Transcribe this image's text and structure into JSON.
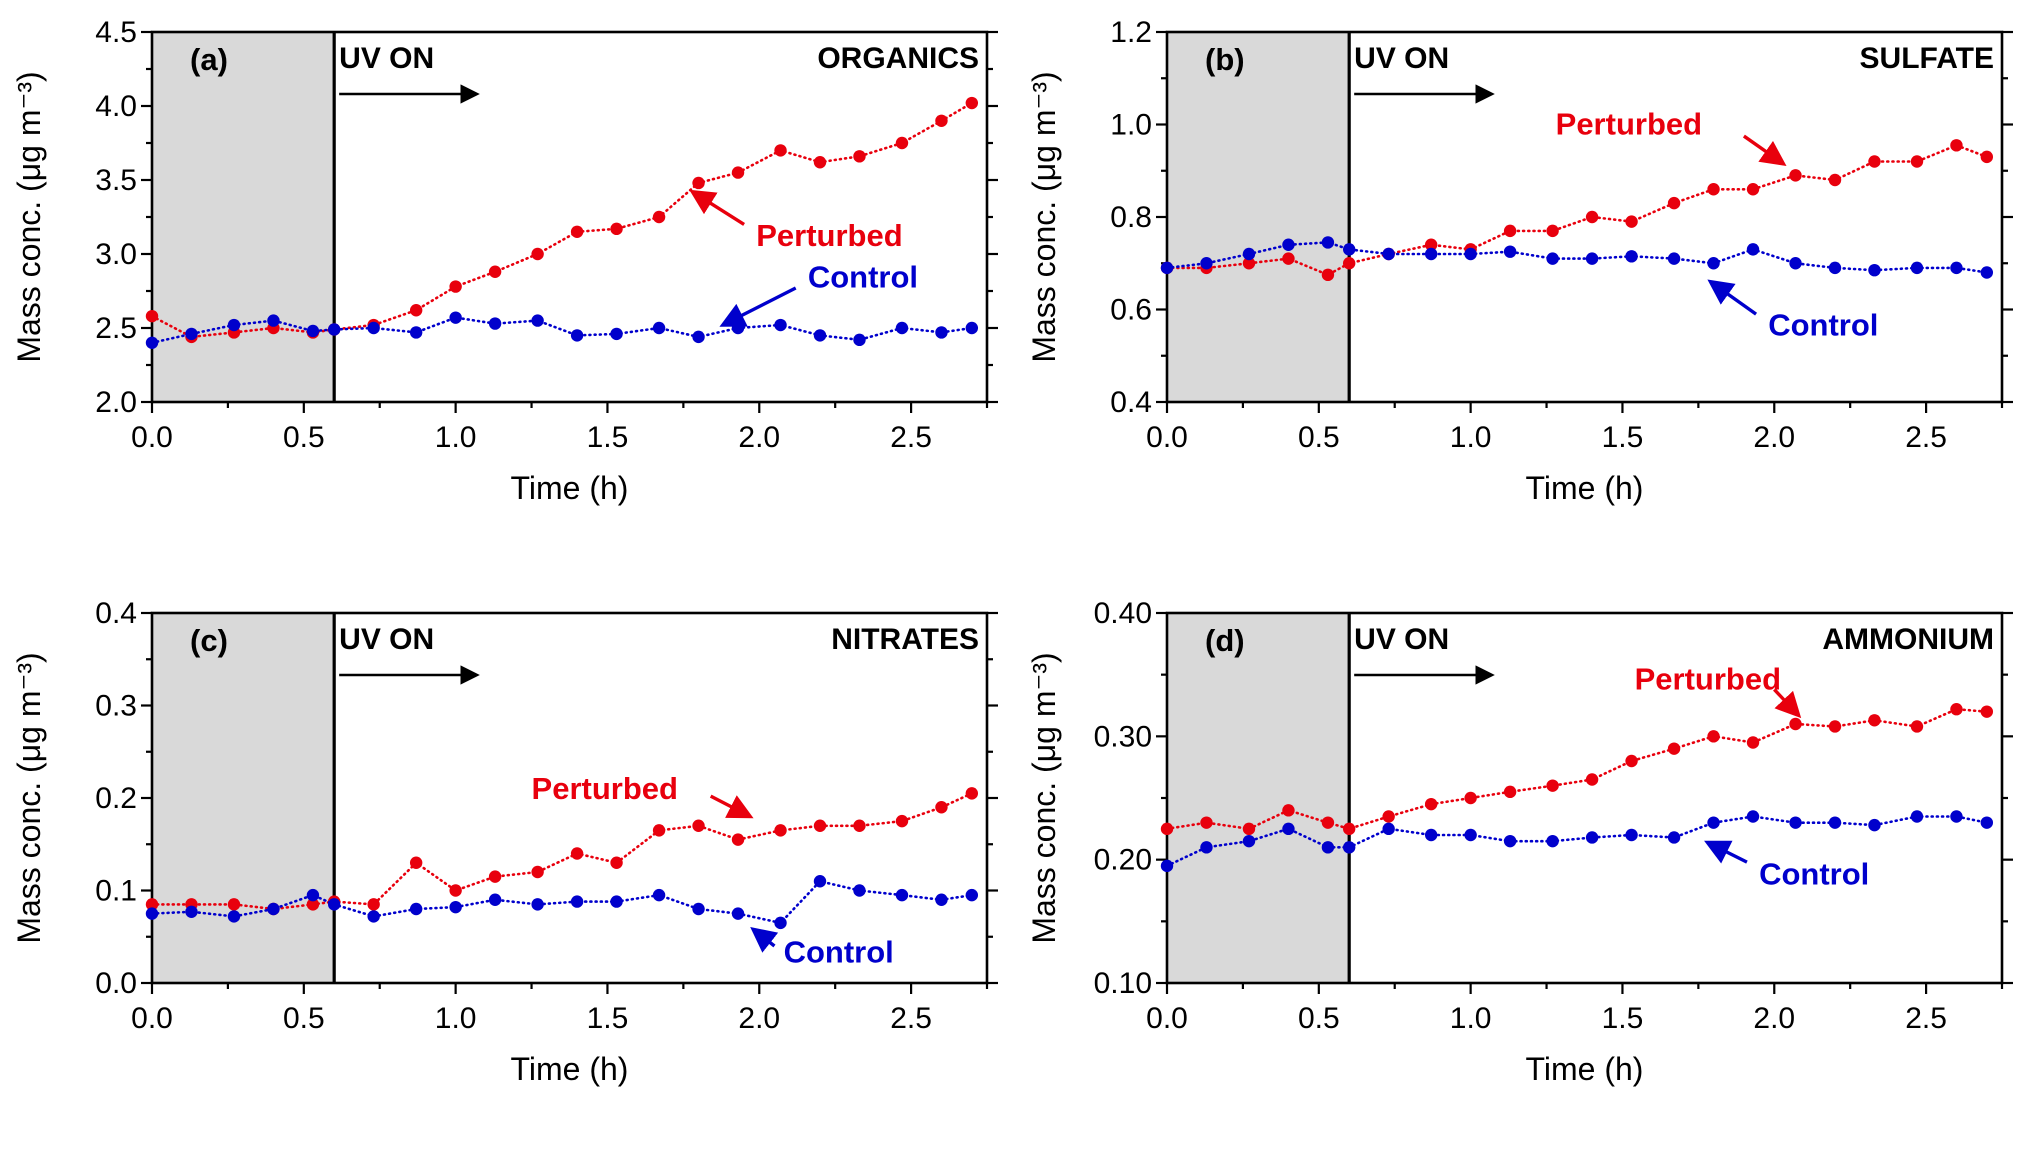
{
  "page": {
    "background": "#ffffff"
  },
  "colors": {
    "perturbed": "#e8000d",
    "control": "#0000cc",
    "axis": "#000000",
    "shade": "#d9d9d9"
  },
  "chart_data": [
    {
      "type": "line",
      "panel_label": "(a)",
      "title": "ORGANICS",
      "xlabel": "Time (h)",
      "ylabel": "Mass conc. (μg m⁻³)",
      "xlim": [
        0,
        2.75
      ],
      "ylim": [
        2.0,
        4.5
      ],
      "xticks": [
        0,
        0.5,
        1.0,
        1.5,
        2.0,
        2.5
      ],
      "xtick_labels": [
        "0.0",
        "0.5",
        "1.0",
        "1.5",
        "2.0",
        "2.5"
      ],
      "yticks": [
        2.0,
        2.5,
        3.0,
        3.5,
        4.0,
        4.5
      ],
      "ytick_labels": [
        "2.0",
        "2.5",
        "3.0",
        "3.5",
        "4.0",
        "4.5"
      ],
      "shade_x": [
        0,
        0.6
      ],
      "uv": {
        "label": "UV ON",
        "line_x": 0.6,
        "arrow_to_x": 1.07
      },
      "x": [
        0,
        0.13,
        0.27,
        0.4,
        0.53,
        0.6,
        0.73,
        0.87,
        1.0,
        1.13,
        1.27,
        1.4,
        1.53,
        1.67,
        1.8,
        1.93,
        2.07,
        2.2,
        2.33,
        2.47,
        2.6,
        2.7
      ],
      "series": [
        {
          "name": "Perturbed",
          "color": "#e8000d",
          "y": [
            2.58,
            2.44,
            2.47,
            2.5,
            2.47,
            2.49,
            2.52,
            2.62,
            2.78,
            2.88,
            3.0,
            3.15,
            3.17,
            3.25,
            3.48,
            3.55,
            3.7,
            3.62,
            3.66,
            3.75,
            3.9,
            4.02
          ]
        },
        {
          "name": "Control",
          "color": "#0000cc",
          "y": [
            2.4,
            2.46,
            2.52,
            2.55,
            2.48,
            2.49,
            2.5,
            2.47,
            2.57,
            2.53,
            2.55,
            2.45,
            2.46,
            2.5,
            2.44,
            2.5,
            2.52,
            2.45,
            2.42,
            2.5,
            2.47,
            2.5
          ]
        }
      ],
      "annotations": [
        {
          "text": "Perturbed",
          "color": "#e8000d",
          "text_x": 1.99,
          "text_y": 3.12,
          "arrow": [
            1.95,
            3.2,
            1.78,
            3.42
          ]
        },
        {
          "text": "Control",
          "color": "#0000cc",
          "text_x": 2.16,
          "text_y": 2.84,
          "arrow": [
            2.12,
            2.77,
            1.88,
            2.52
          ]
        }
      ]
    },
    {
      "type": "line",
      "panel_label": "(b)",
      "title": "SULFATE",
      "xlabel": "Time (h)",
      "ylabel": "Mass conc. (μg m⁻³)",
      "xlim": [
        0,
        2.75
      ],
      "ylim": [
        0.4,
        1.2
      ],
      "xticks": [
        0,
        0.5,
        1.0,
        1.5,
        2.0,
        2.5
      ],
      "xtick_labels": [
        "0.0",
        "0.5",
        "1.0",
        "1.5",
        "2.0",
        "2.5"
      ],
      "yticks": [
        0.4,
        0.6,
        0.8,
        1.0,
        1.2
      ],
      "ytick_labels": [
        "0.4",
        "0.6",
        "0.8",
        "1.0",
        "1.2"
      ],
      "shade_x": [
        0,
        0.6
      ],
      "uv": {
        "label": "UV ON",
        "line_x": 0.6,
        "arrow_to_x": 1.07
      },
      "x": [
        0,
        0.13,
        0.27,
        0.4,
        0.53,
        0.6,
        0.73,
        0.87,
        1.0,
        1.13,
        1.27,
        1.4,
        1.53,
        1.67,
        1.8,
        1.93,
        2.07,
        2.2,
        2.33,
        2.47,
        2.6,
        2.7
      ],
      "series": [
        {
          "name": "Perturbed",
          "color": "#e8000d",
          "y": [
            0.69,
            0.69,
            0.7,
            0.71,
            0.675,
            0.7,
            0.72,
            0.74,
            0.73,
            0.77,
            0.77,
            0.8,
            0.79,
            0.83,
            0.86,
            0.86,
            0.89,
            0.88,
            0.92,
            0.92,
            0.955,
            0.93
          ]
        },
        {
          "name": "Control",
          "color": "#0000cc",
          "y": [
            0.69,
            0.7,
            0.72,
            0.74,
            0.745,
            0.73,
            0.72,
            0.72,
            0.72,
            0.725,
            0.71,
            0.71,
            0.715,
            0.71,
            0.7,
            0.73,
            0.7,
            0.69,
            0.685,
            0.69,
            0.69,
            0.68
          ]
        }
      ],
      "annotations": [
        {
          "text": "Perturbed",
          "color": "#e8000d",
          "text_x": 1.28,
          "text_y": 1.0,
          "arrow": [
            1.9,
            0.975,
            2.03,
            0.915
          ]
        },
        {
          "text": "Control",
          "color": "#0000cc",
          "text_x": 1.98,
          "text_y": 0.565,
          "arrow": [
            1.94,
            0.59,
            1.79,
            0.66
          ]
        }
      ]
    },
    {
      "type": "line",
      "panel_label": "(c)",
      "title": "NITRATES",
      "xlabel": "Time (h)",
      "ylabel": "Mass conc. (μg m⁻³)",
      "xlim": [
        0,
        2.75
      ],
      "ylim": [
        0.0,
        0.4
      ],
      "xticks": [
        0,
        0.5,
        1.0,
        1.5,
        2.0,
        2.5
      ],
      "xtick_labels": [
        "0.0",
        "0.5",
        "1.0",
        "1.5",
        "2.0",
        "2.5"
      ],
      "yticks": [
        0.0,
        0.1,
        0.2,
        0.3,
        0.4
      ],
      "ytick_labels": [
        "0.0",
        "0.1",
        "0.2",
        "0.3",
        "0.4"
      ],
      "shade_x": [
        0,
        0.6
      ],
      "uv": {
        "label": "UV ON",
        "line_x": 0.6,
        "arrow_to_x": 1.07
      },
      "x": [
        0,
        0.13,
        0.27,
        0.4,
        0.53,
        0.6,
        0.73,
        0.87,
        1.0,
        1.13,
        1.27,
        1.4,
        1.53,
        1.67,
        1.8,
        1.93,
        2.07,
        2.2,
        2.33,
        2.47,
        2.6,
        2.7
      ],
      "series": [
        {
          "name": "Perturbed",
          "color": "#e8000d",
          "y": [
            0.085,
            0.085,
            0.085,
            0.08,
            0.085,
            0.088,
            0.085,
            0.13,
            0.1,
            0.115,
            0.12,
            0.14,
            0.13,
            0.165,
            0.17,
            0.155,
            0.165,
            0.17,
            0.17,
            0.175,
            0.19,
            0.205
          ]
        },
        {
          "name": "Control",
          "color": "#0000cc",
          "y": [
            0.075,
            0.077,
            0.072,
            0.08,
            0.095,
            0.085,
            0.072,
            0.08,
            0.082,
            0.09,
            0.085,
            0.088,
            0.088,
            0.095,
            0.08,
            0.075,
            0.065,
            0.11,
            0.1,
            0.095,
            0.09,
            0.095
          ]
        }
      ],
      "annotations": [
        {
          "text": "Perturbed",
          "color": "#e8000d",
          "text_x": 1.25,
          "text_y": 0.21,
          "arrow": [
            1.84,
            0.202,
            1.97,
            0.18
          ]
        },
        {
          "text": "Control",
          "color": "#0000cc",
          "text_x": 2.08,
          "text_y": 0.033,
          "arrow": [
            2.05,
            0.04,
            1.98,
            0.058
          ]
        }
      ]
    },
    {
      "type": "line",
      "panel_label": "(d)",
      "title": "AMMONIUM",
      "xlabel": "Time (h)",
      "ylabel": "Mass conc. (μg m⁻³)",
      "xlim": [
        0,
        2.75
      ],
      "ylim": [
        0.1,
        0.4
      ],
      "xticks": [
        0,
        0.5,
        1.0,
        1.5,
        2.0,
        2.5
      ],
      "xtick_labels": [
        "0.0",
        "0.5",
        "1.0",
        "1.5",
        "2.0",
        "2.5"
      ],
      "yticks": [
        0.1,
        0.2,
        0.3,
        0.4
      ],
      "ytick_labels": [
        "0.10",
        "0.20",
        "0.30",
        "0.40"
      ],
      "shade_x": [
        0,
        0.6
      ],
      "uv": {
        "label": "UV ON",
        "line_x": 0.6,
        "arrow_to_x": 1.07
      },
      "x": [
        0,
        0.13,
        0.27,
        0.4,
        0.53,
        0.6,
        0.73,
        0.87,
        1.0,
        1.13,
        1.27,
        1.4,
        1.53,
        1.67,
        1.8,
        1.93,
        2.07,
        2.2,
        2.33,
        2.47,
        2.6,
        2.7
      ],
      "series": [
        {
          "name": "Perturbed",
          "color": "#e8000d",
          "y": [
            0.225,
            0.23,
            0.225,
            0.24,
            0.23,
            0.225,
            0.235,
            0.245,
            0.25,
            0.255,
            0.26,
            0.265,
            0.28,
            0.29,
            0.3,
            0.295,
            0.31,
            0.308,
            0.313,
            0.308,
            0.322,
            0.32
          ]
        },
        {
          "name": "Control",
          "color": "#0000cc",
          "y": [
            0.195,
            0.21,
            0.215,
            0.225,
            0.21,
            0.21,
            0.225,
            0.22,
            0.22,
            0.215,
            0.215,
            0.218,
            0.22,
            0.218,
            0.23,
            0.235,
            0.23,
            0.23,
            0.228,
            0.235,
            0.235,
            0.23
          ]
        }
      ],
      "annotations": [
        {
          "text": "Perturbed",
          "color": "#e8000d",
          "text_x": 1.54,
          "text_y": 0.346,
          "arrow": [
            2.0,
            0.338,
            2.08,
            0.317
          ]
        },
        {
          "text": "Control",
          "color": "#0000cc",
          "text_x": 1.95,
          "text_y": 0.188,
          "arrow": [
            1.91,
            0.198,
            1.78,
            0.214
          ]
        }
      ]
    }
  ]
}
